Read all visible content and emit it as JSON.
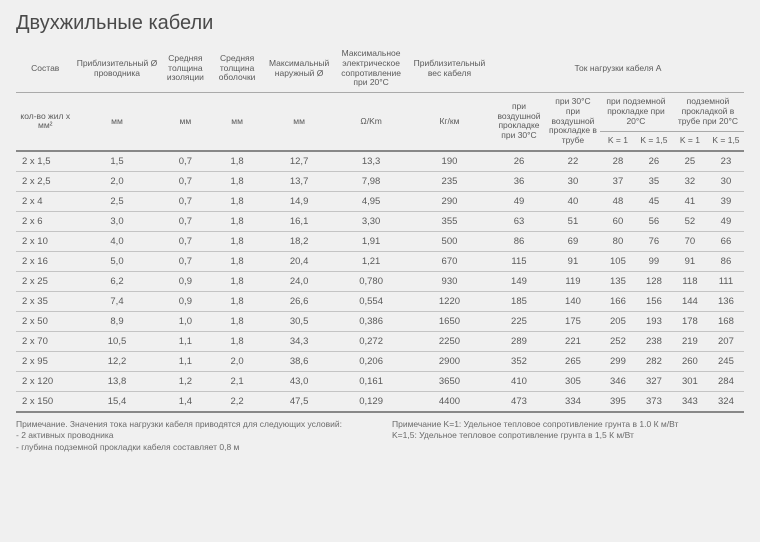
{
  "title": "Двухжильные кабели",
  "headers": {
    "top": {
      "composition": "Состав",
      "approx_diam": "Приблизительный Ø проводника",
      "insul_thick": "Средняя толщина изоляции",
      "sheath_thick": "Средняя толщина оболочки",
      "max_outer": "Максимальный наружный Ø",
      "max_resist": "Максимальное электрическое сопротивление при 20°C",
      "approx_weight": "Приблизительный вес кабеля",
      "load_current": "Ток нагрузки кабеля\nA"
    },
    "sub": {
      "composition": "кол-во жил x мм²",
      "mm": "мм",
      "ohm_km": "Ω/Km",
      "kg_km": "Кг/км",
      "air30": "при воздушной прокладке при 30°C",
      "air30_tube": "при 30°C при воздушной прокладке в трубе",
      "under20": "при подземной прокладке при 20°C",
      "under20_tube": "подземной прокладкой в трубе при 20°C",
      "k1": "K = 1",
      "k15": "K = 1,5"
    }
  },
  "rows": [
    {
      "c": "2 x 1,5",
      "d": "1,5",
      "i": "0,7",
      "s": "1,8",
      "o": "12,7",
      "r": "13,3",
      "w": "190",
      "a1": "26",
      "a2": "22",
      "u1": "28",
      "u2": "26",
      "t1": "25",
      "t2": "23"
    },
    {
      "c": "2 x 2,5",
      "d": "2,0",
      "i": "0,7",
      "s": "1,8",
      "o": "13,7",
      "r": "7,98",
      "w": "235",
      "a1": "36",
      "a2": "30",
      "u1": "37",
      "u2": "35",
      "t1": "32",
      "t2": "30"
    },
    {
      "c": "2 x 4",
      "d": "2,5",
      "i": "0,7",
      "s": "1,8",
      "o": "14,9",
      "r": "4,95",
      "w": "290",
      "a1": "49",
      "a2": "40",
      "u1": "48",
      "u2": "45",
      "t1": "41",
      "t2": "39"
    },
    {
      "c": "2 x 6",
      "d": "3,0",
      "i": "0,7",
      "s": "1,8",
      "o": "16,1",
      "r": "3,30",
      "w": "355",
      "a1": "63",
      "a2": "51",
      "u1": "60",
      "u2": "56",
      "t1": "52",
      "t2": "49"
    },
    {
      "c": "2 x 10",
      "d": "4,0",
      "i": "0,7",
      "s": "1,8",
      "o": "18,2",
      "r": "1,91",
      "w": "500",
      "a1": "86",
      "a2": "69",
      "u1": "80",
      "u2": "76",
      "t1": "70",
      "t2": "66"
    },
    {
      "c": "2 x 16",
      "d": "5,0",
      "i": "0,7",
      "s": "1,8",
      "o": "20,4",
      "r": "1,21",
      "w": "670",
      "a1": "115",
      "a2": "91",
      "u1": "105",
      "u2": "99",
      "t1": "91",
      "t2": "86"
    },
    {
      "c": "2 x 25",
      "d": "6,2",
      "i": "0,9",
      "s": "1,8",
      "o": "24,0",
      "r": "0,780",
      "w": "930",
      "a1": "149",
      "a2": "119",
      "u1": "135",
      "u2": "128",
      "t1": "118",
      "t2": "111"
    },
    {
      "c": "2 x 35",
      "d": "7,4",
      "i": "0,9",
      "s": "1,8",
      "o": "26,6",
      "r": "0,554",
      "w": "1220",
      "a1": "185",
      "a2": "140",
      "u1": "166",
      "u2": "156",
      "t1": "144",
      "t2": "136"
    },
    {
      "c": "2 x 50",
      "d": "8,9",
      "i": "1,0",
      "s": "1,8",
      "o": "30,5",
      "r": "0,386",
      "w": "1650",
      "a1": "225",
      "a2": "175",
      "u1": "205",
      "u2": "193",
      "t1": "178",
      "t2": "168"
    },
    {
      "c": "2 x 70",
      "d": "10,5",
      "i": "1,1",
      "s": "1,8",
      "o": "34,3",
      "r": "0,272",
      "w": "2250",
      "a1": "289",
      "a2": "221",
      "u1": "252",
      "u2": "238",
      "t1": "219",
      "t2": "207"
    },
    {
      "c": "2 x 95",
      "d": "12,2",
      "i": "1,1",
      "s": "2,0",
      "o": "38,6",
      "r": "0,206",
      "w": "2900",
      "a1": "352",
      "a2": "265",
      "u1": "299",
      "u2": "282",
      "t1": "260",
      "t2": "245"
    },
    {
      "c": "2 x 120",
      "d": "13,8",
      "i": "1,2",
      "s": "2,1",
      "o": "43,0",
      "r": "0,161",
      "w": "3650",
      "a1": "410",
      "a2": "305",
      "u1": "346",
      "u2": "327",
      "t1": "301",
      "t2": "284"
    },
    {
      "c": "2 x 150",
      "d": "15,4",
      "i": "1,4",
      "s": "2,2",
      "o": "47,5",
      "r": "0,129",
      "w": "4400",
      "a1": "473",
      "a2": "334",
      "u1": "395",
      "u2": "373",
      "t1": "343",
      "t2": "324"
    }
  ],
  "footnotes": {
    "left": {
      "l1": "Примечание. Значения тока нагрузки кабеля приводятся для следующих условий:",
      "l2": "- 2 активных проводника",
      "l3": "- глубина подземной прокладки кабеля составляет 0,8 м"
    },
    "right": {
      "l1": "Примечание K=1: Удельное тепловое сопротивление грунта в 1.0 К м/Вт",
      "l2": "K=1,5: Удельное тепловое сопротивление грунта в 1,5 К м/Вт"
    }
  },
  "colors": {
    "bg": "#f0f0f0",
    "text": "#5a5a5a",
    "rule_thick": "#888888",
    "rule_thin": "#c4c4c4"
  }
}
